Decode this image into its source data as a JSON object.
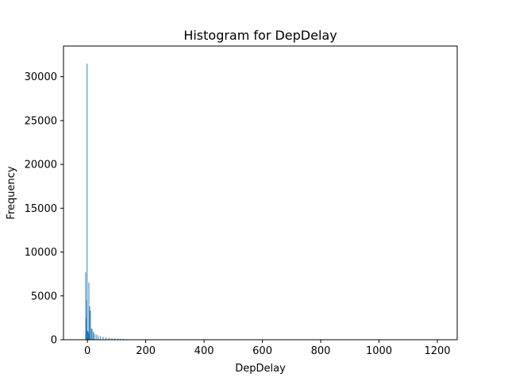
{
  "chart_data": {
    "type": "bar",
    "title": "Histogram for DepDelay",
    "xlabel": "DepDelay",
    "ylabel": "Frequency",
    "xlim": [
      -82,
      1268
    ],
    "ylim": [
      0,
      33500
    ],
    "x_ticks": [
      0,
      200,
      400,
      600,
      800,
      1000,
      1200
    ],
    "y_ticks": [
      0,
      5000,
      10000,
      15000,
      20000,
      25000,
      30000
    ],
    "bar_color": "#1f77b4",
    "grid": false,
    "bins": [
      {
        "x": -6,
        "value": 7700
      },
      {
        "x": -5,
        "value": 500
      },
      {
        "x": -4,
        "value": 1000
      },
      {
        "x": -3,
        "value": 2500
      },
      {
        "x": -2,
        "value": 4500
      },
      {
        "x": -1,
        "value": 31500
      },
      {
        "x": 0,
        "value": 500
      },
      {
        "x": 1,
        "value": 1000
      },
      {
        "x": 2,
        "value": 900
      },
      {
        "x": 3,
        "value": 800
      },
      {
        "x": 4,
        "value": 700
      },
      {
        "x": 5,
        "value": 6500
      },
      {
        "x": 6,
        "value": 600
      },
      {
        "x": 8,
        "value": 3800
      },
      {
        "x": 10,
        "value": 3300
      },
      {
        "x": 14,
        "value": 1300
      },
      {
        "x": 16,
        "value": 1200
      },
      {
        "x": 20,
        "value": 900
      },
      {
        "x": 24,
        "value": 700
      },
      {
        "x": 30,
        "value": 600
      },
      {
        "x": 36,
        "value": 500
      },
      {
        "x": 44,
        "value": 420
      },
      {
        "x": 54,
        "value": 340
      },
      {
        "x": 64,
        "value": 280
      },
      {
        "x": 74,
        "value": 230
      },
      {
        "x": 84,
        "value": 190
      },
      {
        "x": 94,
        "value": 160
      },
      {
        "x": 104,
        "value": 140
      },
      {
        "x": 114,
        "value": 120
      },
      {
        "x": 124,
        "value": 100
      },
      {
        "x": 134,
        "value": 60
      },
      {
        "x": 150,
        "value": 40
      },
      {
        "x": 170,
        "value": 30
      },
      {
        "x": 190,
        "value": 20
      },
      {
        "x": 220,
        "value": 15
      },
      {
        "x": 260,
        "value": 10
      },
      {
        "x": 320,
        "value": 6
      },
      {
        "x": 400,
        "value": 4
      },
      {
        "x": 500,
        "value": 3
      },
      {
        "x": 700,
        "value": 2
      },
      {
        "x": 1200,
        "value": 1
      }
    ]
  }
}
